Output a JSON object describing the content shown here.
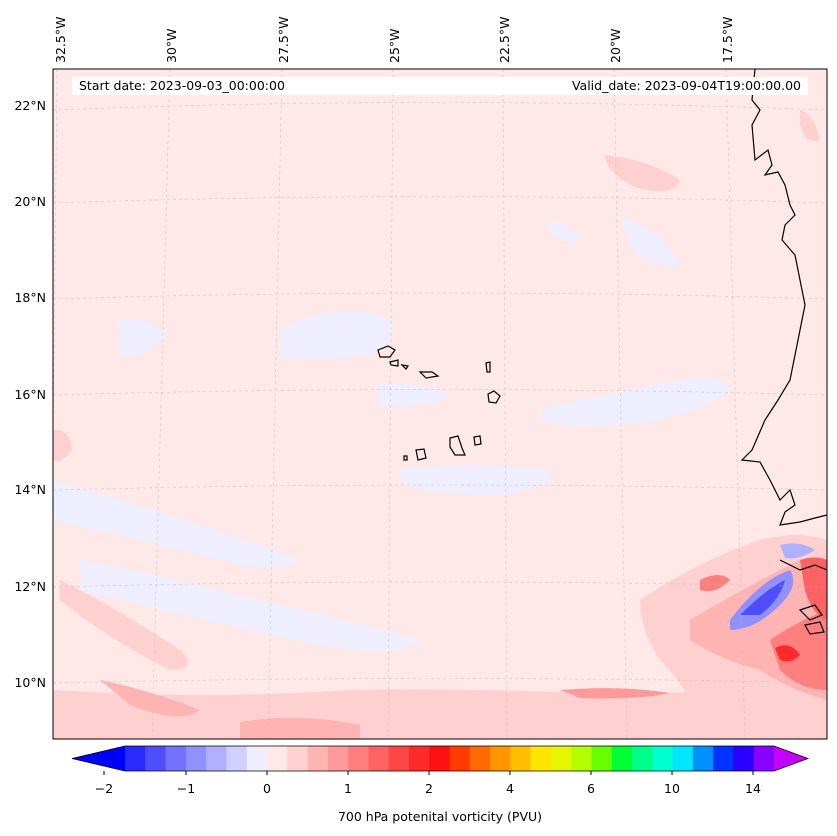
{
  "map": {
    "title_start": "Start date: 2023-09-03_00:00:00",
    "title_valid": "Valid_date: 2023-09-04T19:00:00.00",
    "lon_labels": [
      "32.5°W",
      "30°W",
      "27.5°W",
      "25°W",
      "22.5°W",
      "20°W",
      "17.5°W"
    ],
    "lat_labels": [
      "22°N",
      "20°N",
      "18°N",
      "16°N",
      "14°N",
      "12°N",
      "10°N"
    ],
    "variable": "700 hPa potential vorticity"
  },
  "colorbar": {
    "label": "700 hPa potenital vorticity (PVU)",
    "tick_labels": [
      "−2",
      "−1",
      "0",
      "1",
      "2",
      "4",
      "6",
      "10",
      "14"
    ],
    "colors": [
      "#0000ff",
      "#2a2aff",
      "#4e4eff",
      "#7272ff",
      "#9090ff",
      "#b0b0ff",
      "#d0d0ff",
      "#eeeeff",
      "#ffe8e8",
      "#ffd0d0",
      "#ffb4b4",
      "#ff9a9a",
      "#ff7e7e",
      "#ff6262",
      "#ff4646",
      "#ff2a2a",
      "#ff1010",
      "#ff3c00",
      "#ff6a00",
      "#ff9500",
      "#ffbf00",
      "#ffe600",
      "#e6f500",
      "#b3ff00",
      "#66ff00",
      "#00ff33",
      "#00ff88",
      "#00ffcc",
      "#00e6ff",
      "#0090ff",
      "#0033ff",
      "#2a00ff",
      "#8a00ff",
      "#c400ff"
    ]
  }
}
